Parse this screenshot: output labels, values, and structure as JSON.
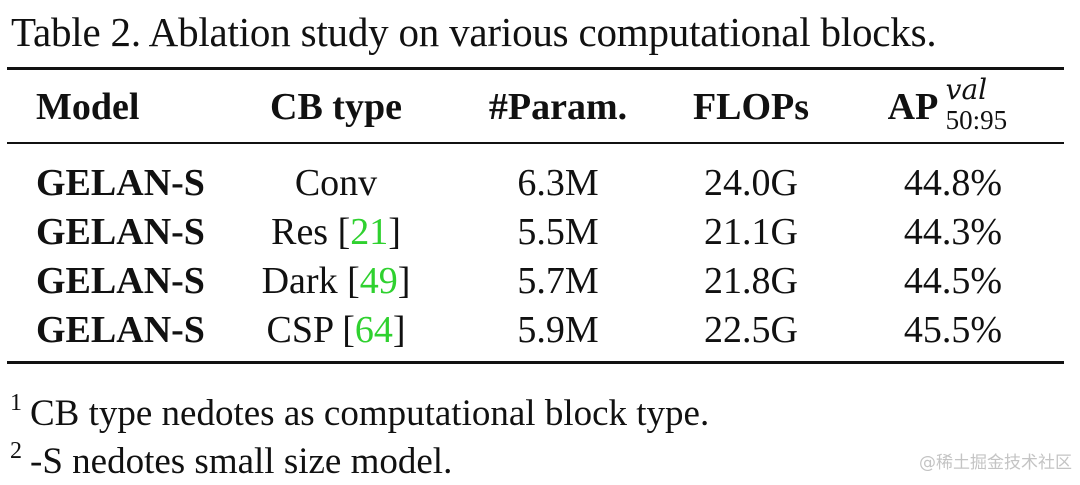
{
  "caption": "Table 2. Ablation study on various computational blocks.",
  "table": {
    "headers": {
      "model": "Model",
      "cb_type": "CB type",
      "param": "#Param.",
      "flops": "FLOPs",
      "ap": "AP",
      "ap_sup": "val",
      "ap_sub": "50:95"
    },
    "rows": [
      {
        "model": "GELAN-S",
        "cb_type": "Conv",
        "cb_ref": "",
        "cb_ref_open": "",
        "cb_ref_close": "",
        "param": "6.3M",
        "flops": "24.0G",
        "ap": "44.8%"
      },
      {
        "model": "GELAN-S",
        "cb_type": "Res ",
        "cb_ref": "21",
        "cb_ref_open": "[",
        "cb_ref_close": "]",
        "param": "5.5M",
        "flops": "21.1G",
        "ap": "44.3%"
      },
      {
        "model": "GELAN-S",
        "cb_type": "Dark ",
        "cb_ref": "49",
        "cb_ref_open": "[",
        "cb_ref_close": "]",
        "param": "5.7M",
        "flops": "21.8G",
        "ap": "44.5%"
      },
      {
        "model": "GELAN-S",
        "cb_type": "CSP ",
        "cb_ref": "64",
        "cb_ref_open": "[",
        "cb_ref_close": "]",
        "param": "5.9M",
        "flops": "22.5G",
        "ap": "45.5%"
      }
    ]
  },
  "footnotes": [
    {
      "mark": "1",
      "text": "CB type nedotes as computational block type."
    },
    {
      "mark": "2",
      "text": "-S nedotes small size model."
    }
  ],
  "watermark": "@稀土掘金技术社区",
  "colors": {
    "reference_link": "#2fd12f",
    "text": "#111111",
    "rule": "#111111"
  }
}
